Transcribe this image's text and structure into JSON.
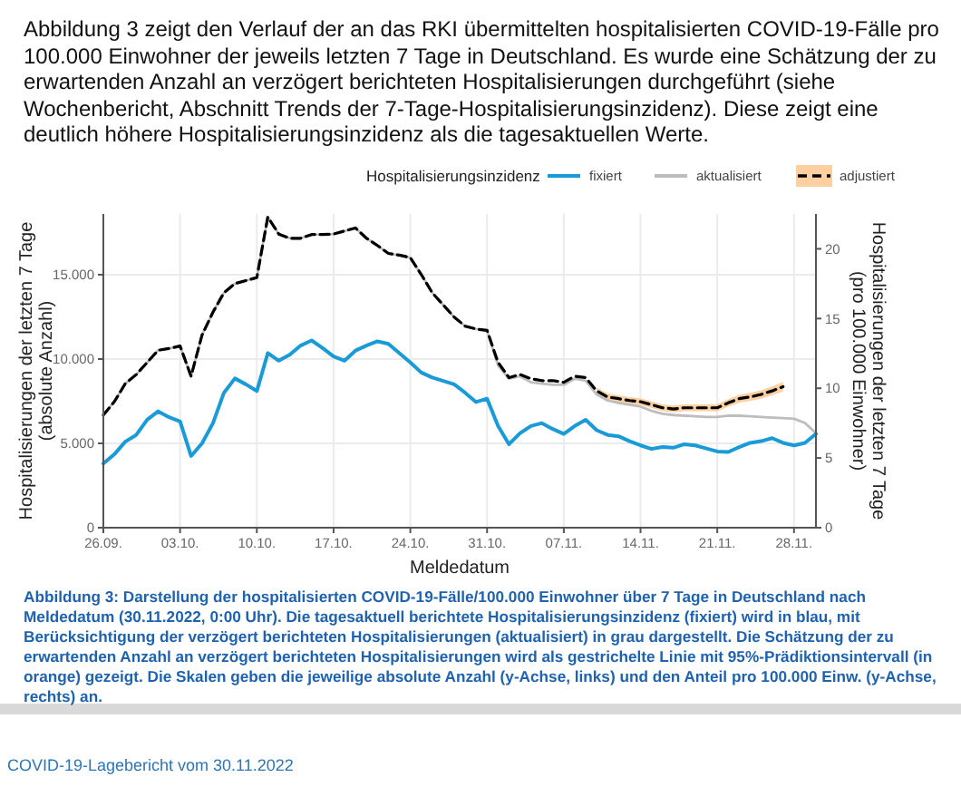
{
  "chart_data": {
    "type": "line",
    "title": "Abbildung 3 zeigt den Verlauf der an das RKI übermittelten hospitalisierten COVID-19-Fälle pro 100.000 Einwohner der jeweils letzten 7 Tage in Deutschland. Es wurde eine Schätzung der zu erwartenden Anzahl an verzögert berichteten Hospitalisierungen durchgeführt (siehe Wochenbericht, Abschnitt Trends der 7-Tage-Hospitalisierungsinzidenz). Diese zeigt eine deutlich höhere Hospitalisierungsinzidenz als die tagesaktuellen Werte.",
    "xlabel": "Meldedatum",
    "ylabel": "Hospitalisierungen der letzten 7 Tage\n(absolute Anzahl)",
    "y2label": "Hospitalisierungen der letzten 7 Tage\n(pro 100.000 Einwohner)",
    "legend_title": "Hospitalisierungsinzidenz",
    "legend": "top",
    "grid": true,
    "annotations": [
      "Abbildung 3: Darstellung der hospitalisierten COVID-19-Fälle/100.000 Einwohner über 7 Tage in Deutschland nach Meldedatum (30.11.2022, 0:00 Uhr). Die tagesaktuell berichtete Hospitalisierungsinzidenz (fixiert) wird in blau, mit Berücksichtigung der verzögert berichteten Hospitalisierungen (aktualisiert) in grau dargestellt. Die Schätzung der zu erwartenden Anzahl an verzögert berichteten Hospitalisierungen wird als gestrichelte Linie mit 95%-Prädiktionsintervall (in orange) gezeigt. Die Skalen geben die jeweilige absolute Anzahl (y-Achse, links) und den Anteil pro 100.000 Einw. (y-Achse, rechts) an.",
      "COVID-19-Lagebericht vom 30.11.2022"
    ],
    "xlim": [
      "2022-09-26",
      "2022-11-30"
    ],
    "xticks": [
      {
        "value": "2022-09-26",
        "label": "26.09."
      },
      {
        "value": "2022-10-03",
        "label": "03.10."
      },
      {
        "value": "2022-10-10",
        "label": "10.10."
      },
      {
        "value": "2022-10-17",
        "label": "17.10."
      },
      {
        "value": "2022-10-24",
        "label": "24.10."
      },
      {
        "value": "2022-10-31",
        "label": "31.10."
      },
      {
        "value": "2022-11-07",
        "label": "07.11."
      },
      {
        "value": "2022-11-14",
        "label": "14.11."
      },
      {
        "value": "2022-11-21",
        "label": "21.11."
      },
      {
        "value": "2022-11-28",
        "label": "28.11."
      }
    ],
    "ylim": [
      0,
      18600
    ],
    "yticks": [
      0,
      {
        "value": 5000,
        "label": "5.000"
      },
      {
        "value": 10000,
        "label": "10.000"
      },
      {
        "value": 15000,
        "label": "15.000"
      }
    ],
    "y2lim": [
      0,
      22.5
    ],
    "y2ticks": [
      0,
      5,
      10,
      15,
      20
    ],
    "x": [
      "2022-09-26",
      "2022-09-27",
      "2022-09-28",
      "2022-09-29",
      "2022-09-30",
      "2022-10-01",
      "2022-10-02",
      "2022-10-03",
      "2022-10-04",
      "2022-10-05",
      "2022-10-06",
      "2022-10-07",
      "2022-10-08",
      "2022-10-09",
      "2022-10-10",
      "2022-10-11",
      "2022-10-12",
      "2022-10-13",
      "2022-10-14",
      "2022-10-15",
      "2022-10-16",
      "2022-10-17",
      "2022-10-18",
      "2022-10-19",
      "2022-10-20",
      "2022-10-21",
      "2022-10-22",
      "2022-10-23",
      "2022-10-24",
      "2022-10-25",
      "2022-10-26",
      "2022-10-27",
      "2022-10-28",
      "2022-10-29",
      "2022-10-30",
      "2022-10-31",
      "2022-11-01",
      "2022-11-02",
      "2022-11-03",
      "2022-11-04",
      "2022-11-05",
      "2022-11-06",
      "2022-11-07",
      "2022-11-08",
      "2022-11-09",
      "2022-11-10",
      "2022-11-11",
      "2022-11-12",
      "2022-11-13",
      "2022-11-14",
      "2022-11-15",
      "2022-11-16",
      "2022-11-17",
      "2022-11-18",
      "2022-11-19",
      "2022-11-20",
      "2022-11-21",
      "2022-11-22",
      "2022-11-23",
      "2022-11-24",
      "2022-11-25",
      "2022-11-26",
      "2022-11-27",
      "2022-11-28",
      "2022-11-29",
      "2022-11-30"
    ],
    "series": [
      {
        "name": "aktualisiert",
        "color": "#bdbdbd",
        "line_style": "solid",
        "values": [
          6680,
          7470,
          8540,
          9080,
          9800,
          10520,
          10630,
          10770,
          8980,
          11420,
          12780,
          13930,
          14470,
          14650,
          14830,
          18420,
          17410,
          17160,
          17160,
          17380,
          17380,
          17410,
          17590,
          17770,
          17160,
          16730,
          16260,
          16160,
          16010,
          15010,
          13930,
          13210,
          12490,
          11950,
          11780,
          11700,
          9620,
          8830,
          8980,
          8620,
          8540,
          8470,
          8470,
          8830,
          8720,
          7900,
          7540,
          7400,
          7290,
          7180,
          6930,
          6750,
          6680,
          6640,
          6610,
          6570,
          6570,
          6640,
          6640,
          6610,
          6570,
          6530,
          6500,
          6460,
          6210,
          5600
        ]
      },
      {
        "name": "adjustiert",
        "color": "#000000",
        "line_style": "dashed",
        "values": [
          6680,
          7470,
          8540,
          9080,
          9800,
          10520,
          10630,
          10770,
          8980,
          11420,
          12780,
          13930,
          14470,
          14650,
          14830,
          18420,
          17410,
          17160,
          17160,
          17380,
          17380,
          17410,
          17590,
          17770,
          17160,
          16730,
          16260,
          16160,
          16010,
          15010,
          13930,
          13210,
          12490,
          11950,
          11780,
          11700,
          9800,
          8900,
          9080,
          8830,
          8720,
          8720,
          8620,
          8980,
          8900,
          8110,
          7750,
          7650,
          7540,
          7470,
          7290,
          7110,
          7040,
          7110,
          7110,
          7110,
          7110,
          7400,
          7650,
          7750,
          7900,
          8110,
          8360,
          null,
          null,
          null
        ],
        "lower": [
          null,
          null,
          null,
          null,
          null,
          null,
          null,
          null,
          null,
          null,
          null,
          null,
          null,
          null,
          null,
          null,
          null,
          null,
          null,
          null,
          null,
          null,
          null,
          null,
          null,
          null,
          null,
          null,
          null,
          null,
          null,
          null,
          null,
          null,
          null,
          null,
          null,
          null,
          null,
          null,
          null,
          null,
          null,
          null,
          null,
          7910,
          7550,
          7450,
          7340,
          7270,
          7090,
          6910,
          6840,
          6910,
          6910,
          6910,
          6900,
          7180,
          7420,
          7510,
          7650,
          7850,
          8080,
          null,
          null,
          null
        ],
        "upper": [
          null,
          null,
          null,
          null,
          null,
          null,
          null,
          null,
          null,
          null,
          null,
          null,
          null,
          null,
          null,
          null,
          null,
          null,
          null,
          null,
          null,
          null,
          null,
          null,
          null,
          null,
          null,
          null,
          null,
          null,
          null,
          null,
          null,
          null,
          null,
          null,
          null,
          null,
          null,
          null,
          null,
          null,
          null,
          null,
          null,
          8310,
          7950,
          7850,
          7740,
          7670,
          7490,
          7310,
          7240,
          7310,
          7310,
          7310,
          7320,
          7620,
          7880,
          7990,
          8150,
          8370,
          8640,
          null,
          null,
          null
        ]
      },
      {
        "name": "fixiert",
        "color": "#1a9bd7",
        "line_style": "solid",
        "values": [
          3800,
          4350,
          5100,
          5500,
          6400,
          6900,
          6550,
          6300,
          4250,
          5000,
          6200,
          8000,
          8850,
          8500,
          8100,
          10350,
          9900,
          10250,
          10800,
          11100,
          10650,
          10150,
          9900,
          10500,
          10800,
          11050,
          10900,
          10350,
          9800,
          9200,
          8900,
          8700,
          8500,
          8000,
          7450,
          7650,
          6030,
          4950,
          5600,
          6030,
          6200,
          5850,
          5560,
          6030,
          6400,
          5780,
          5500,
          5420,
          5130,
          4880,
          4670,
          4780,
          4740,
          4950,
          4880,
          4700,
          4520,
          4490,
          4780,
          5030,
          5130,
          5310,
          5030,
          4880,
          5030,
          5560
        ]
      }
    ]
  }
}
